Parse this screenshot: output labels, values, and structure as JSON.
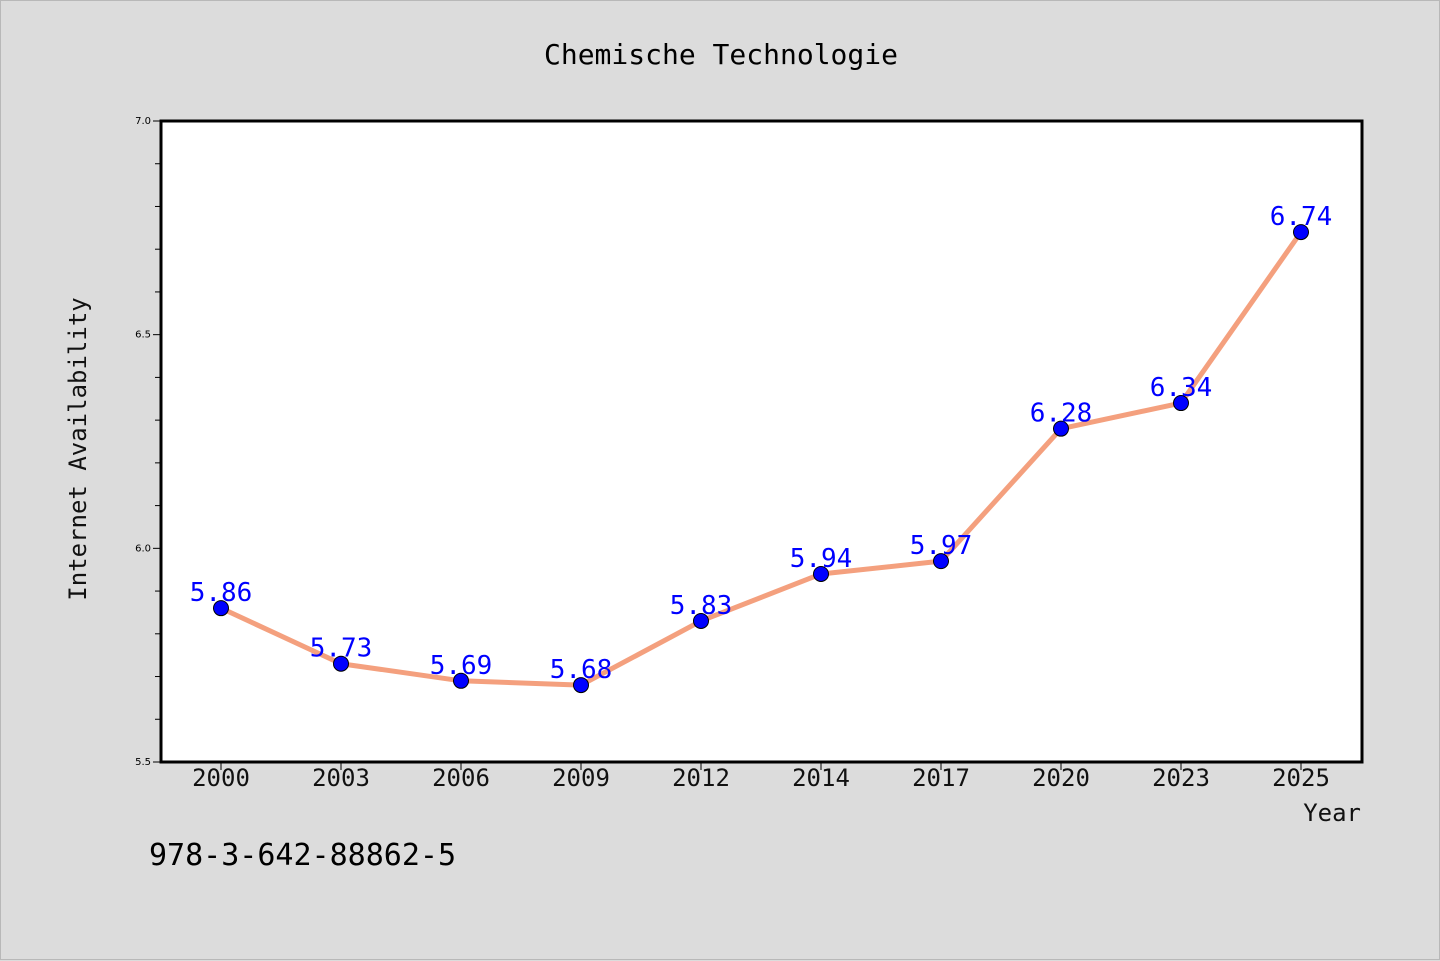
{
  "footer": {
    "isbn": "978-3-642-88862-5"
  },
  "colors": {
    "background": "#dcdcdc",
    "plot_background": "#ffffff",
    "line": "#f4a07e",
    "marker": "#0000ff",
    "data_label": "#0000ff"
  },
  "chart_data": {
    "type": "line",
    "title": "Chemische Technologie",
    "xlabel": "Year",
    "ylabel": "Internet Availability",
    "categories": [
      "2000",
      "2003",
      "2006",
      "2009",
      "2012",
      "2014",
      "2017",
      "2020",
      "2023",
      "2025"
    ],
    "series": [
      {
        "values": [
          5.86,
          5.73,
          5.69,
          5.68,
          5.83,
          5.94,
          5.97,
          6.28,
          6.34,
          6.74
        ]
      }
    ],
    "data_labels": [
      "5.86",
      "5.73",
      "5.69",
      "5.68",
      "5.83",
      "5.94",
      "5.97",
      "6.28",
      "6.34",
      "6.74"
    ],
    "ylim": [
      5.5,
      7.0
    ],
    "y_ticks": [
      "5.5",
      "6.0",
      "6.5",
      "7.0"
    ],
    "grid": false,
    "legend": "none",
    "marker": "circle"
  }
}
